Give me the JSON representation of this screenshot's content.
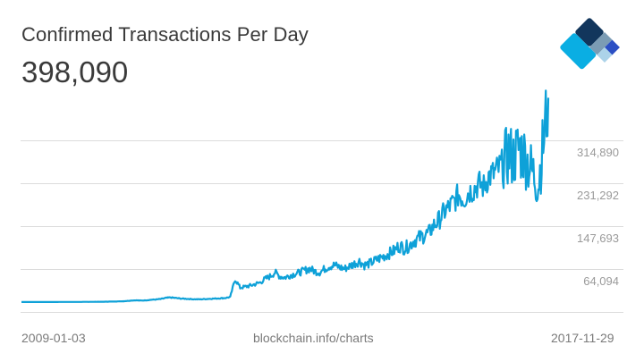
{
  "header": {
    "title": "Confirmed Transactions Per Day",
    "current_value": "398,090"
  },
  "footer": {
    "start_date": "2009-01-03",
    "source": "blockchain.info/charts",
    "end_date": "2017-11-29"
  },
  "logo": {
    "name": "blockchain-logo",
    "colors": [
      "#12365c",
      "#7b9cb4",
      "#2b4fc4",
      "#acd3e9",
      "#0aaee3"
    ]
  },
  "colors": {
    "line": "#0ea1d8",
    "grid": "#dcdcdc",
    "tick_text": "#9a9a9a"
  },
  "chart_data": {
    "type": "line",
    "title": "Confirmed Transactions Per Day",
    "xlabel": "",
    "ylabel": "",
    "x_range": [
      "2009-01-03",
      "2017-11-29"
    ],
    "ylim": [
      -19505,
      398090
    ],
    "y_ticks": [
      {
        "value": 314890,
        "label": "314,890"
      },
      {
        "value": 231292,
        "label": "231,292"
      },
      {
        "value": 147693,
        "label": "147,693"
      },
      {
        "value": 64094,
        "label": "64,094"
      }
    ],
    "grid": true,
    "series": [
      {
        "name": "Confirmed Transactions Per Day",
        "x": [
          "2009-01",
          "2009-02",
          "2009-03",
          "2009-04",
          "2009-05",
          "2009-06",
          "2009-07",
          "2009-08",
          "2009-09",
          "2009-10",
          "2009-11",
          "2009-12",
          "2010-01",
          "2010-02",
          "2010-03",
          "2010-04",
          "2010-05",
          "2010-06",
          "2010-07",
          "2010-08",
          "2010-09",
          "2010-10",
          "2010-11",
          "2010-12",
          "2011-01",
          "2011-02",
          "2011-03",
          "2011-04",
          "2011-05",
          "2011-06",
          "2011-07",
          "2011-08",
          "2011-09",
          "2011-10",
          "2011-11",
          "2011-12",
          "2012-01",
          "2012-02",
          "2012-03",
          "2012-04",
          "2012-05",
          "2012-06",
          "2012-07",
          "2012-08",
          "2012-09",
          "2012-10",
          "2012-11",
          "2012-12",
          "2013-01",
          "2013-02",
          "2013-03",
          "2013-04",
          "2013-05",
          "2013-06",
          "2013-07",
          "2013-08",
          "2013-09",
          "2013-10",
          "2013-11",
          "2013-12",
          "2014-01",
          "2014-02",
          "2014-03",
          "2014-04",
          "2014-05",
          "2014-06",
          "2014-07",
          "2014-08",
          "2014-09",
          "2014-10",
          "2014-11",
          "2014-12",
          "2015-01",
          "2015-02",
          "2015-03",
          "2015-04",
          "2015-05",
          "2015-06",
          "2015-07",
          "2015-08",
          "2015-09",
          "2015-10",
          "2015-11",
          "2015-12",
          "2016-01",
          "2016-02",
          "2016-03",
          "2016-04",
          "2016-05",
          "2016-06",
          "2016-07",
          "2016-08",
          "2016-09",
          "2016-10",
          "2016-11",
          "2016-12",
          "2017-01",
          "2017-02",
          "2017-03",
          "2017-04",
          "2017-05",
          "2017-06",
          "2017-07",
          "2017-08",
          "2017-09",
          "2017-10",
          "2017-11"
        ],
        "y": [
          100,
          150,
          150,
          200,
          200,
          200,
          250,
          250,
          300,
          300,
          350,
          400,
          400,
          450,
          500,
          600,
          700,
          800,
          1000,
          1200,
          1500,
          2000,
          3000,
          3500,
          3000,
          3500,
          4500,
          5000,
          6000,
          8000,
          9000,
          8000,
          7000,
          6500,
          6000,
          5500,
          5500,
          6000,
          6500,
          7000,
          7500,
          8000,
          10000,
          45000,
          28000,
          30000,
          32000,
          35000,
          38000,
          45000,
          50000,
          58000,
          50000,
          48000,
          52000,
          55000,
          58000,
          62000,
          65000,
          60000,
          58000,
          65000,
          70000,
          72000,
          68000,
          65000,
          70000,
          75000,
          80000,
          72000,
          75000,
          80000,
          85000,
          90000,
          95000,
          100000,
          110000,
          105000,
          110000,
          120000,
          125000,
          130000,
          135000,
          150000,
          160000,
          175000,
          185000,
          195000,
          210000,
          200000,
          215000,
          220000,
          230000,
          225000,
          245000,
          250000,
          260000,
          270000,
          290000,
          280000,
          300000,
          290000,
          270000,
          250000,
          230000,
          310000,
          398090
        ]
      }
    ]
  }
}
